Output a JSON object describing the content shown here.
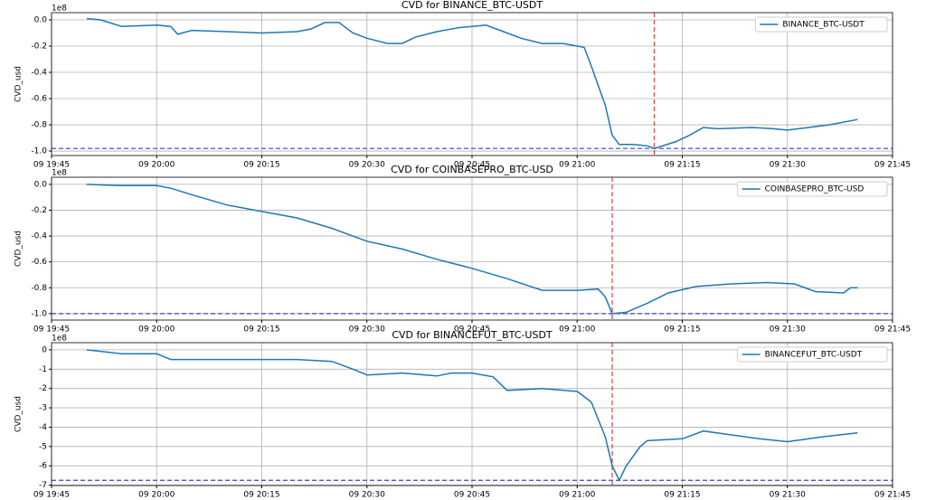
{
  "chart_data": [
    {
      "type": "line",
      "title": "CVD for BINANCE_BTC-USDT",
      "ylabel": "CVD_usd",
      "y_offset_label": "1e8",
      "x": [
        "09 19:50",
        "09 19:52",
        "09 19:55",
        "09 20:00",
        "09 20:02",
        "09 20:03",
        "09 20:05",
        "09 20:10",
        "09 20:15",
        "09 20:20",
        "09 20:22",
        "09 20:24",
        "09 20:26",
        "09 20:28",
        "09 20:30",
        "09 20:33",
        "09 20:35",
        "09 20:37",
        "09 20:40",
        "09 20:43",
        "09 20:45",
        "09 20:47",
        "09 20:50",
        "09 20:52",
        "09 20:55",
        "09 20:58",
        "09 21:00",
        "09 21:01",
        "09 21:02",
        "09 21:03",
        "09 21:04",
        "09 21:05",
        "09 21:06",
        "09 21:08",
        "09 21:10",
        "09 21:11",
        "09 21:14",
        "09 21:16",
        "09 21:18",
        "09 21:20",
        "09 21:25",
        "09 21:28",
        "09 21:30",
        "09 21:33",
        "09 21:36",
        "09 21:40"
      ],
      "series": [
        {
          "name": "BINANCE_BTC-USDT",
          "color": "#1f77b4",
          "values": [
            0.01,
            0.0,
            -0.05,
            -0.04,
            -0.05,
            -0.11,
            -0.08,
            -0.09,
            -0.1,
            -0.09,
            -0.07,
            -0.02,
            -0.02,
            -0.1,
            -0.14,
            -0.18,
            -0.18,
            -0.13,
            -0.09,
            -0.06,
            -0.05,
            -0.04,
            -0.1,
            -0.14,
            -0.18,
            -0.18,
            -0.2,
            -0.21,
            -0.35,
            -0.5,
            -0.65,
            -0.88,
            -0.95,
            -0.95,
            -0.96,
            -0.98,
            -0.93,
            -0.88,
            -0.82,
            -0.83,
            -0.82,
            -0.83,
            -0.84,
            -0.82,
            -0.8,
            -0.76
          ]
        }
      ],
      "xlim": [
        "09 19:45",
        "09 21:45"
      ],
      "xticks": [
        "09 19:45",
        "09 20:00",
        "09 20:15",
        "09 20:30",
        "09 20:45",
        "09 21:00",
        "09 21:15",
        "09 21:30",
        "09 21:45"
      ],
      "ylim": [
        -1.034,
        0.055
      ],
      "yticks": [
        {
          "value": 0,
          "label": "0.0"
        },
        -0.2,
        -0.4,
        -0.6,
        -0.8,
        {
          "value": -1,
          "label": "-1.0"
        }
      ],
      "grid": true,
      "legend": "upper right",
      "hline": {
        "value": -0.98,
        "color": "#3b3bd6"
      },
      "vline": {
        "x": "09 21:11",
        "color": "#e0413a"
      }
    },
    {
      "type": "line",
      "title": "CVD for COINBASEPRO_BTC-USD",
      "ylabel": "CVD_usd",
      "y_offset_label": "1e8",
      "x": [
        "09 19:50",
        "09 19:55",
        "09 20:00",
        "09 20:02",
        "09 20:05",
        "09 20:10",
        "09 20:15",
        "09 20:20",
        "09 20:25",
        "09 20:30",
        "09 20:35",
        "09 20:40",
        "09 20:45",
        "09 20:50",
        "09 20:55",
        "09 21:00",
        "09 21:03",
        "09 21:04",
        "09 21:05",
        "09 21:07",
        "09 21:10",
        "09 21:13",
        "09 21:17",
        "09 21:22",
        "09 21:27",
        "09 21:31",
        "09 21:34",
        "09 21:38",
        "09 21:39",
        "09 21:40"
      ],
      "series": [
        {
          "name": "COINBASEPRO_BTC-USD",
          "color": "#1f77b4",
          "values": [
            0.0,
            -0.01,
            -0.01,
            -0.03,
            -0.08,
            -0.16,
            -0.21,
            -0.26,
            -0.34,
            -0.44,
            -0.5,
            -0.58,
            -0.65,
            -0.73,
            -0.82,
            -0.82,
            -0.81,
            -0.87,
            -1.0,
            -0.99,
            -0.92,
            -0.84,
            -0.79,
            -0.77,
            -0.76,
            -0.77,
            -0.83,
            -0.84,
            -0.8,
            -0.8
          ]
        }
      ],
      "xlim": [
        "09 19:45",
        "09 21:45"
      ],
      "xticks": [
        "09 19:45",
        "09 20:00",
        "09 20:15",
        "09 20:30",
        "09 20:45",
        "09 21:00",
        "09 21:15",
        "09 21:30",
        "09 21:45"
      ],
      "ylim": [
        -1.05,
        0.055
      ],
      "yticks": [
        {
          "value": 0,
          "label": "0.0"
        },
        -0.2,
        -0.4,
        -0.6,
        -0.8,
        {
          "value": -1,
          "label": "-1.0"
        }
      ],
      "grid": true,
      "legend": "upper right",
      "hline": {
        "value": -1.0,
        "color": "#3b3bd6"
      },
      "vline": {
        "x": "09 21:05",
        "color": "#e0413a"
      }
    },
    {
      "type": "line",
      "title": "CVD for BINANCEFUT_BTC-USDT",
      "ylabel": "CVD_usd",
      "y_offset_label": "1e8",
      "x": [
        "09 19:50",
        "09 19:55",
        "09 20:00",
        "09 20:02",
        "09 20:10",
        "09 20:20",
        "09 20:25",
        "09 20:28",
        "09 20:30",
        "09 20:35",
        "09 20:40",
        "09 20:42",
        "09 20:45",
        "09 20:48",
        "09 20:50",
        "09 20:55",
        "09 21:00",
        "09 21:02",
        "09 21:04",
        "09 21:05",
        "09 21:06",
        "09 21:07",
        "09 21:09",
        "09 21:10",
        "09 21:15",
        "09 21:18",
        "09 21:22",
        "09 21:26",
        "09 21:30",
        "09 21:35",
        "09 21:40"
      ],
      "series": [
        {
          "name": "BINANCEFUT_BTC-USDT",
          "color": "#1f77b4",
          "values": [
            0.0,
            -0.2,
            -0.2,
            -0.5,
            -0.5,
            -0.5,
            -0.6,
            -1.0,
            -1.3,
            -1.2,
            -1.35,
            -1.2,
            -1.2,
            -1.4,
            -2.1,
            -2.0,
            -2.15,
            -2.7,
            -4.5,
            -6.0,
            -6.75,
            -6.0,
            -5.0,
            -4.7,
            -4.6,
            -4.2,
            -4.4,
            -4.6,
            -4.75,
            -4.5,
            -4.3
          ]
        }
      ],
      "xlim": [
        "09 19:45",
        "09 21:45"
      ],
      "xticks": [
        "09 19:45",
        "09 20:00",
        "09 20:15",
        "09 20:30",
        "09 20:45",
        "09 21:00",
        "09 21:15",
        "09 21:30",
        "09 21:45"
      ],
      "ylim": [
        -7.02,
        0.37
      ],
      "yticks": [
        0,
        -1,
        -2,
        -3,
        -4,
        -5,
        -6,
        -7
      ],
      "grid": true,
      "legend": "upper right",
      "hline": {
        "value": -6.75,
        "color": "#3b3bd6"
      },
      "vline": {
        "x": "09 21:05",
        "color": "#e0413a"
      }
    }
  ]
}
